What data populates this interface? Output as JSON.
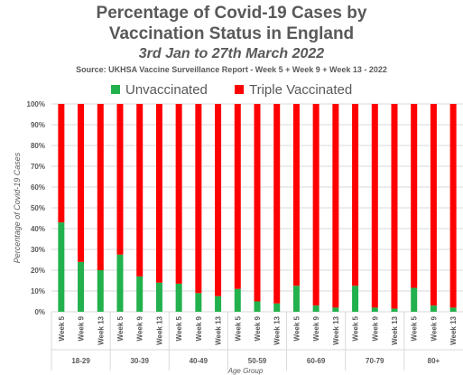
{
  "chart_data": {
    "type": "bar",
    "stacked": true,
    "percent": true,
    "title": "Percentage of Covid-19 Cases by",
    "title_line2": "Vaccination Status in England",
    "subtitle": "3rd Jan to 27th March 2022",
    "source": "Source: UKHSA Vaccine Surveillance Report - Week 5 + Week 9 + Week 13 - 2022",
    "xlabel": "Age Group",
    "ylabel": "Percentage of Covid-19 Cases",
    "ylim": [
      0,
      100
    ],
    "yticks": [
      "0%",
      "10%",
      "20%",
      "30%",
      "40%",
      "50%",
      "60%",
      "70%",
      "80%",
      "90%",
      "100%"
    ],
    "legend_position": "top",
    "groups": [
      "18-29",
      "30-39",
      "40-49",
      "50-59",
      "60-69",
      "70-79",
      "80+"
    ],
    "weeks": [
      "Week 5",
      "Week 9",
      "Week 13"
    ],
    "series": [
      {
        "name": "Unvaccinated",
        "color": "#22B14C",
        "values": [
          43,
          24,
          20,
          27.5,
          17,
          14,
          13.5,
          9,
          7.5,
          11,
          5,
          4,
          12.5,
          3,
          2,
          12.5,
          2,
          1.5,
          11.5,
          3,
          2
        ]
      },
      {
        "name": "Triple Vaccinated",
        "color": "#FF0000",
        "values": [
          57,
          76,
          80,
          72.5,
          83,
          86,
          86.5,
          91,
          92.5,
          89,
          95,
          96,
          87.5,
          97,
          98,
          87.5,
          98,
          98.5,
          88.5,
          97,
          98
        ]
      }
    ]
  }
}
